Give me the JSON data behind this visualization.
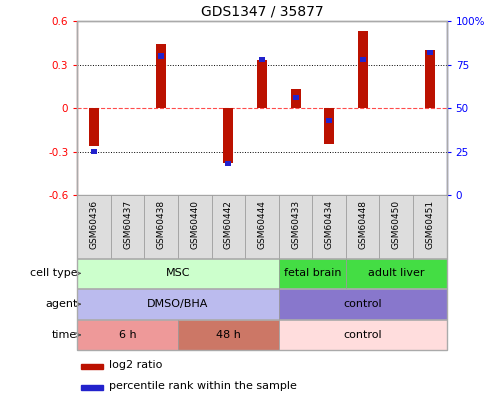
{
  "title": "GDS1347 / 35877",
  "samples": [
    "GSM60436",
    "GSM60437",
    "GSM60438",
    "GSM60440",
    "GSM60442",
    "GSM60444",
    "GSM60433",
    "GSM60434",
    "GSM60448",
    "GSM60450",
    "GSM60451"
  ],
  "log2_ratio": [
    -0.26,
    0.0,
    0.44,
    0.0,
    -0.38,
    0.33,
    0.13,
    -0.25,
    0.53,
    0.0,
    0.4
  ],
  "percentile_rank": [
    25,
    0,
    80,
    0,
    18,
    78,
    56,
    43,
    78,
    0,
    82
  ],
  "ylim_left": [
    -0.6,
    0.6
  ],
  "ylim_right": [
    0,
    100
  ],
  "yticks_left": [
    -0.6,
    -0.3,
    0.0,
    0.3,
    0.6
  ],
  "yticks_right": [
    0,
    25,
    50,
    75,
    100
  ],
  "ytick_labels_right": [
    "0",
    "25",
    "50",
    "75",
    "100%"
  ],
  "hlines_dotted": [
    -0.3,
    0.3
  ],
  "hline_dashed": 0.0,
  "bar_color": "#bb1100",
  "blue_color": "#2222cc",
  "cell_type_groups": [
    {
      "label": "MSC",
      "start": 0,
      "end": 6,
      "color": "#ccffcc"
    },
    {
      "label": "fetal brain",
      "start": 6,
      "end": 8,
      "color": "#44dd44"
    },
    {
      "label": "adult liver",
      "start": 8,
      "end": 11,
      "color": "#44dd44"
    }
  ],
  "agent_groups": [
    {
      "label": "DMSO/BHA",
      "start": 0,
      "end": 6,
      "color": "#bbbbee"
    },
    {
      "label": "control",
      "start": 6,
      "end": 11,
      "color": "#8877cc"
    }
  ],
  "time_groups": [
    {
      "label": "6 h",
      "start": 0,
      "end": 3,
      "color": "#ee9999"
    },
    {
      "label": "48 h",
      "start": 3,
      "end": 6,
      "color": "#cc7766"
    },
    {
      "label": "control",
      "start": 6,
      "end": 11,
      "color": "#ffdddd"
    }
  ],
  "row_labels": [
    "cell type",
    "agent",
    "time"
  ],
  "legend_labels": [
    "log2 ratio",
    "percentile rank within the sample"
  ],
  "legend_colors": [
    "#bb1100",
    "#2222cc"
  ],
  "background_color": "#ffffff"
}
